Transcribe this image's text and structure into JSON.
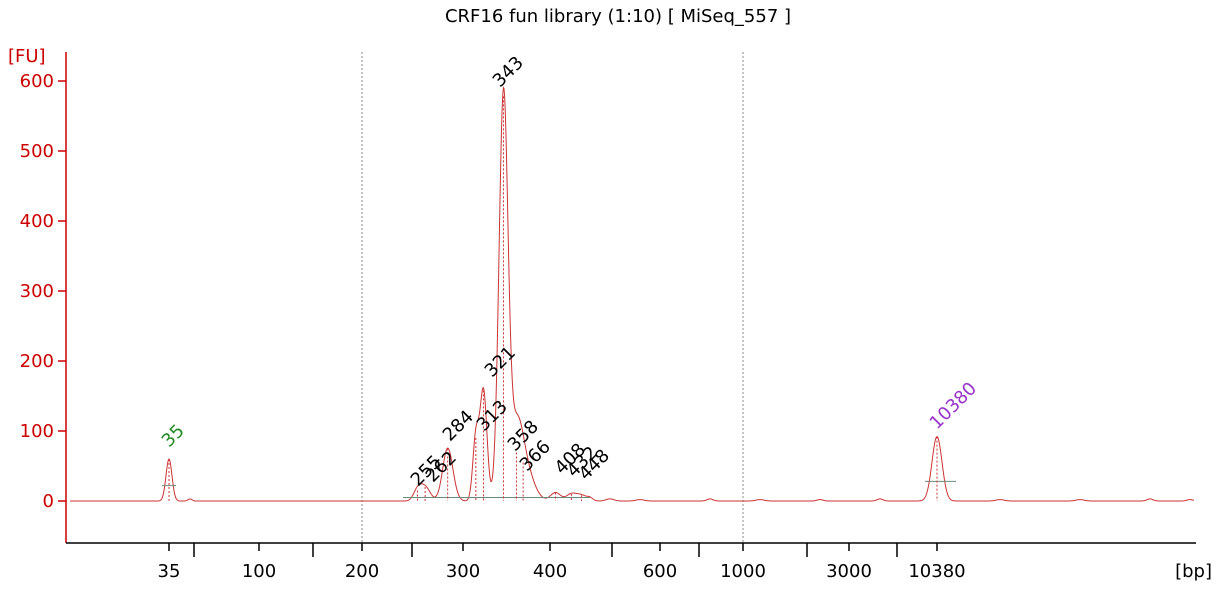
{
  "chart_data": {
    "type": "line",
    "title": "CRF16 fun library (1:10)  [ MiSeq_557 ]",
    "ylabel": "[FU]",
    "xlabel": "[bp]",
    "ylim": [
      -60,
      640
    ],
    "y_ticks": [
      0,
      100,
      200,
      300,
      400,
      500,
      600
    ],
    "x_ticks": [
      "35",
      "100",
      "200",
      "300",
      "400",
      "600",
      "1000",
      "3000",
      "10380"
    ],
    "x_scale": "electropherogram (non-linear size ladder)",
    "reference_lines_bp": [
      200,
      1000
    ],
    "color_trace": "#cc3333",
    "color_axis": "#cc0000",
    "peaks": [
      {
        "label": "35",
        "bp": 35,
        "fu": 60,
        "color": "#228b22"
      },
      {
        "label": "255",
        "bp": 255,
        "fu": 15,
        "color": "#000000"
      },
      {
        "label": "262",
        "bp": 262,
        "fu": 20,
        "color": "#000000"
      },
      {
        "label": "284",
        "bp": 284,
        "fu": 75,
        "color": "#000000"
      },
      {
        "label": "313",
        "bp": 313,
        "fu": 90,
        "color": "#000000"
      },
      {
        "label": "321",
        "bp": 321,
        "fu": 158,
        "color": "#000000"
      },
      {
        "label": "343",
        "bp": 343,
        "fu": 578,
        "color": "#000000"
      },
      {
        "label": "358",
        "bp": 358,
        "fu": 75,
        "color": "#000000"
      },
      {
        "label": "366",
        "bp": 366,
        "fu": 55,
        "color": "#000000"
      },
      {
        "label": "408",
        "bp": 408,
        "fu": 12,
        "color": "#000000"
      },
      {
        "label": "432",
        "bp": 432,
        "fu": 10,
        "color": "#000000"
      },
      {
        "label": "448",
        "bp": 448,
        "fu": 8,
        "color": "#000000"
      },
      {
        "label": "10380",
        "bp": 10380,
        "fu": 92,
        "color": "#9933cc"
      }
    ]
  }
}
